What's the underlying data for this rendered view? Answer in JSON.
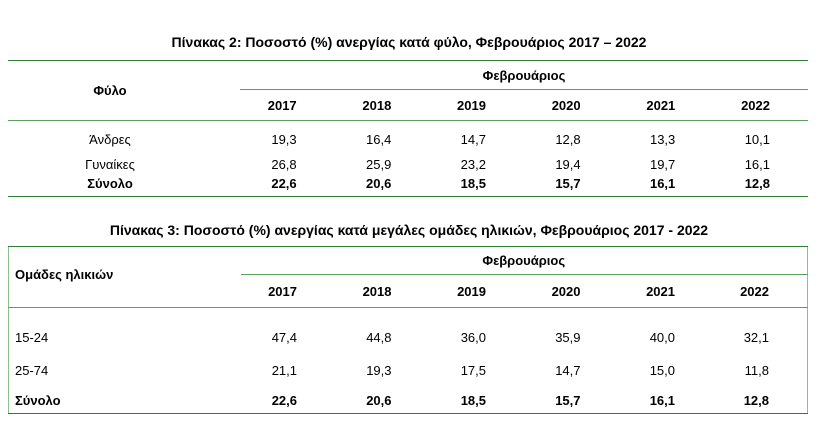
{
  "table2": {
    "title": "Πίνακας 2: Ποσοστό (%) ανεργίας κατά φύλο, Φεβρουάριος 2017 – 2022",
    "row_header": "Φύλο",
    "group_header": "Φεβρουάριος",
    "years": [
      "2017",
      "2018",
      "2019",
      "2020",
      "2021",
      "2022"
    ],
    "rows": [
      {
        "label": "Άνδρες",
        "values": [
          "19,3",
          "16,4",
          "14,7",
          "12,8",
          "13,3",
          "10,1"
        ]
      },
      {
        "label": "Γυναίκες",
        "values": [
          "26,8",
          "25,9",
          "23,2",
          "19,4",
          "19,7",
          "16,1"
        ]
      },
      {
        "label": "Σύνολο",
        "values": [
          "22,6",
          "20,6",
          "18,5",
          "15,7",
          "16,1",
          "12,8"
        ]
      }
    ]
  },
  "table3": {
    "title": "Πίνακας 3: Ποσοστό (%) ανεργίας κατά μεγάλες ομάδες ηλικιών, Φεβρουάριος 2017 - 2022",
    "row_header": "Ομάδες ηλικιών",
    "group_header": "Φεβρουάριος",
    "years": [
      "2017",
      "2018",
      "2019",
      "2020",
      "2021",
      "2022"
    ],
    "rows": [
      {
        "label": "15-24",
        "values": [
          "47,4",
          "44,8",
          "36,0",
          "35,9",
          "40,0",
          "32,1"
        ]
      },
      {
        "label": "25-74",
        "values": [
          "21,1",
          "19,3",
          "17,5",
          "14,7",
          "15,0",
          "11,8"
        ]
      },
      {
        "label": "Σύνολο",
        "values": [
          "22,6",
          "20,6",
          "18,5",
          "15,7",
          "16,1",
          "12,8"
        ]
      }
    ]
  },
  "colors": {
    "rule_green": "#2e7d32"
  }
}
